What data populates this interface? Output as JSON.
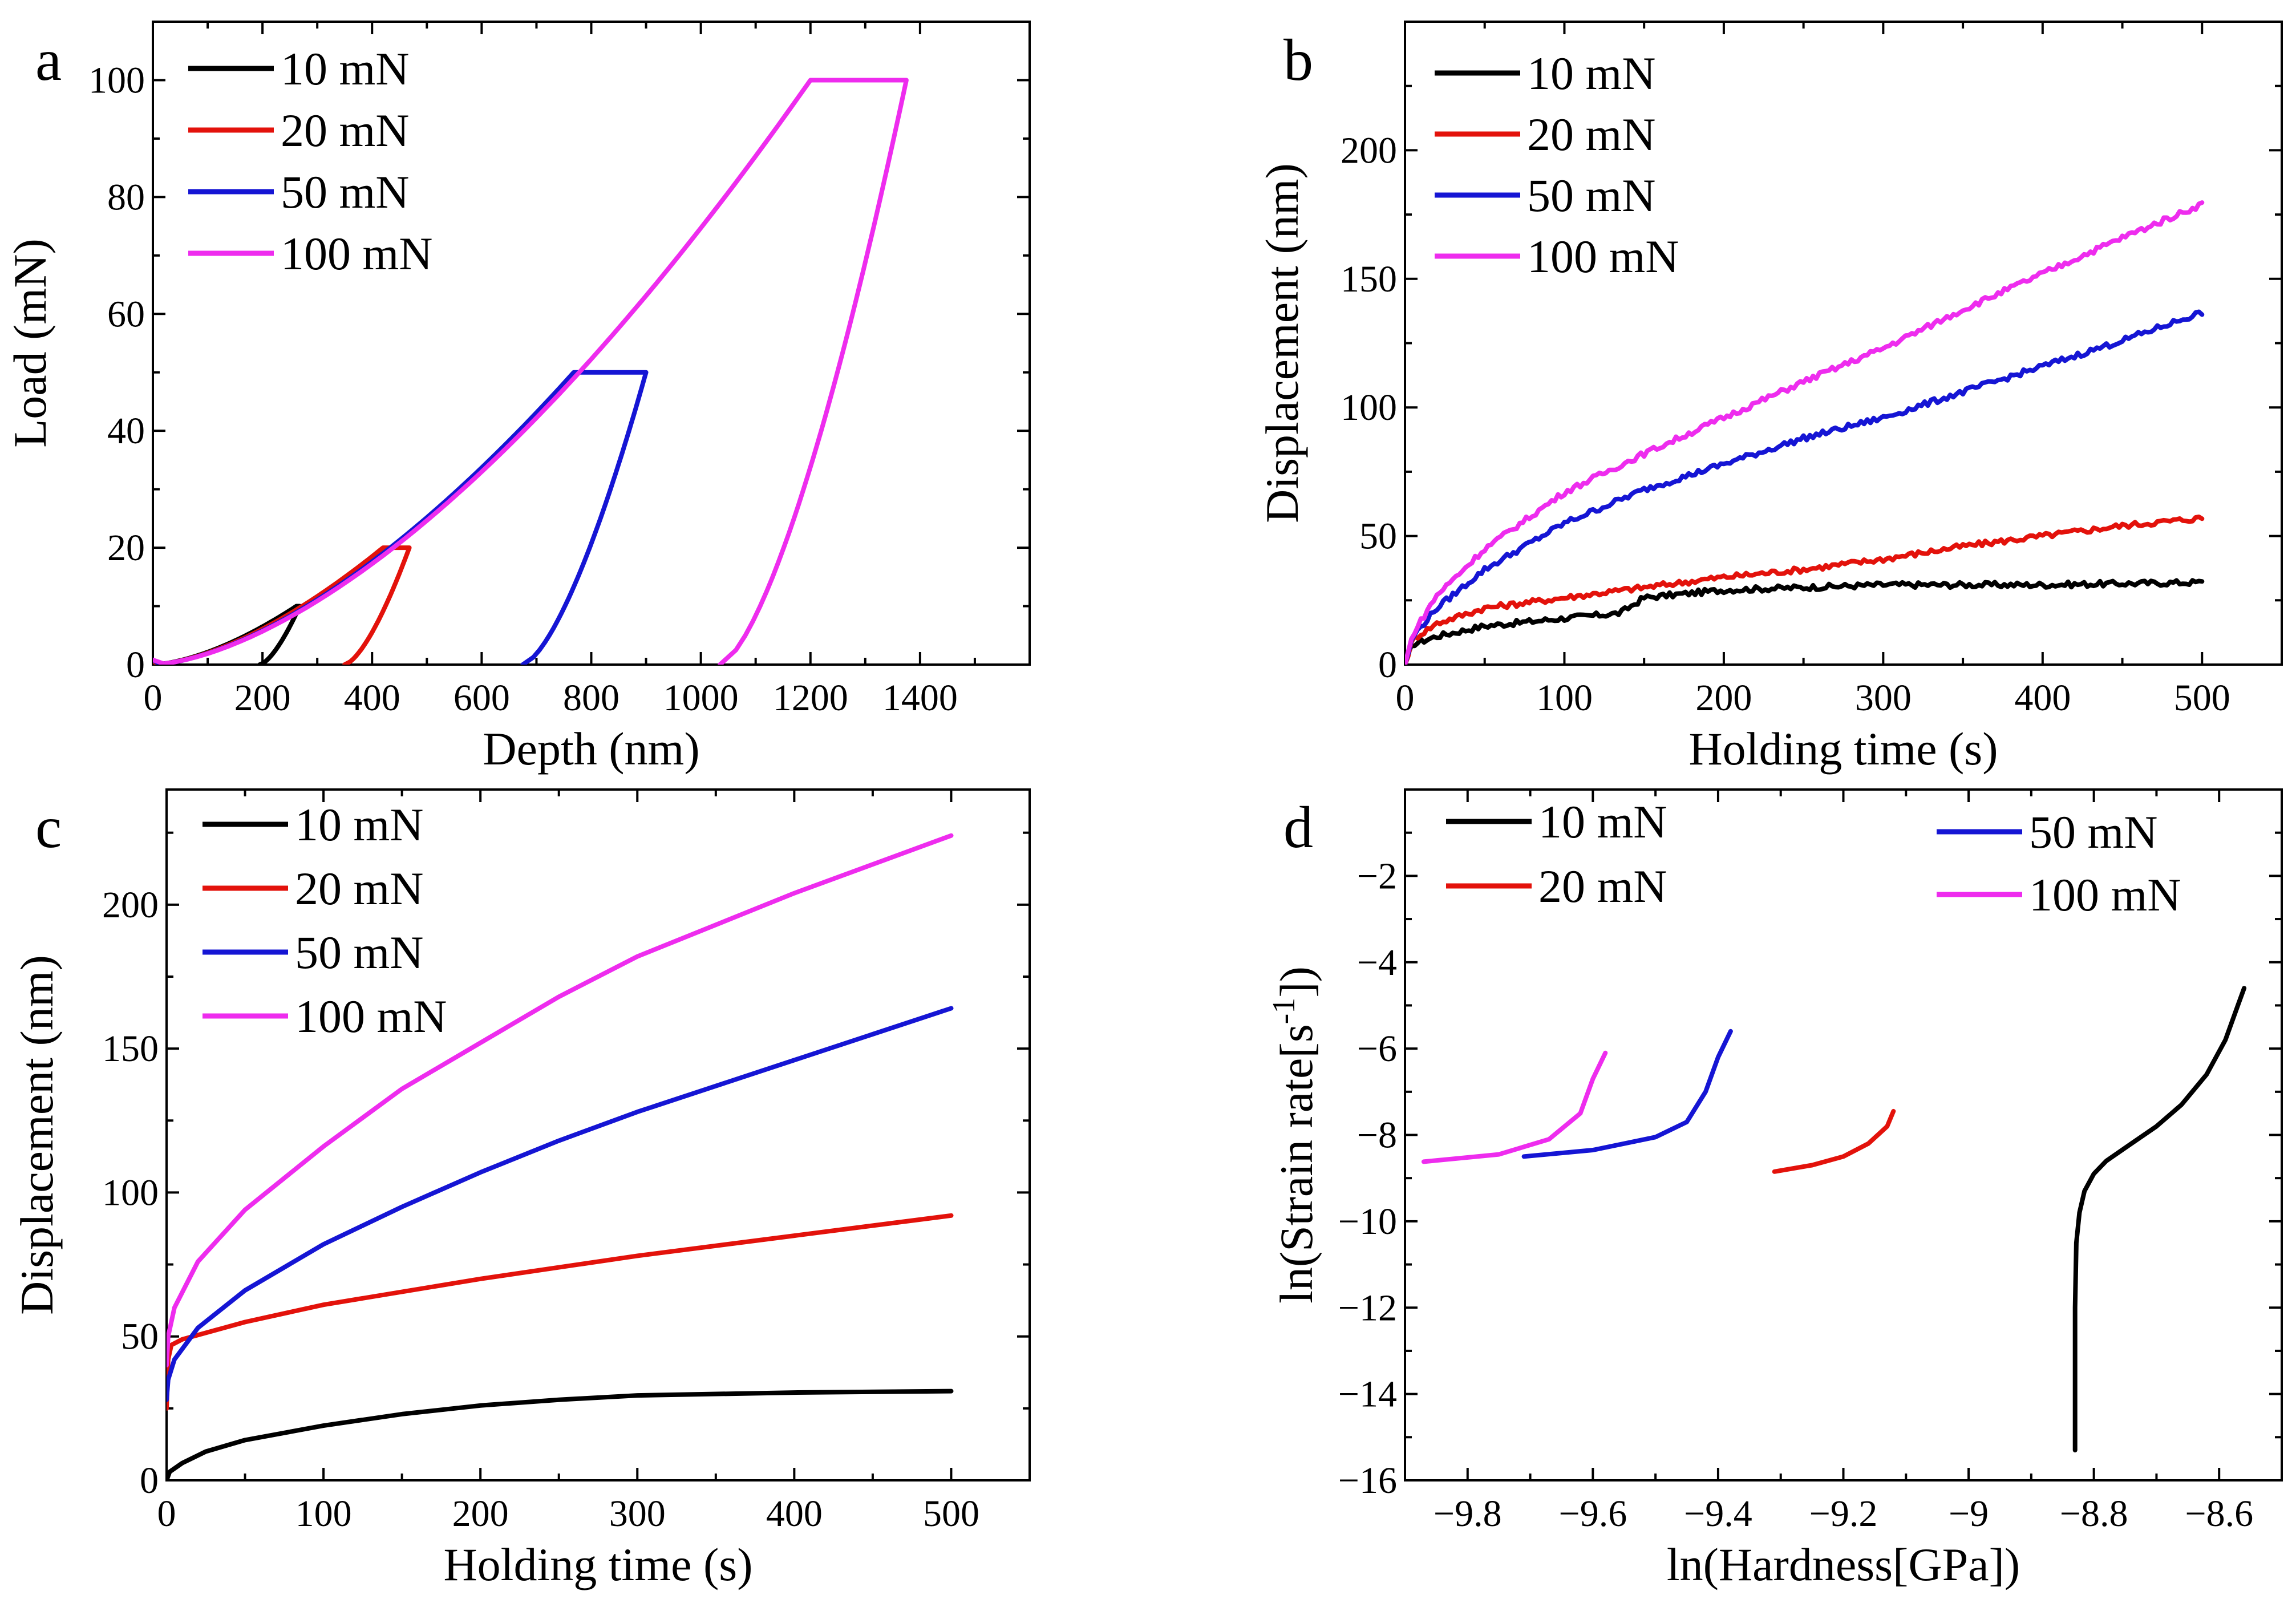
{
  "colors": {
    "black": "#000000",
    "red": "#e3120b",
    "blue": "#1515d4",
    "magenta": "#ee2cee"
  },
  "chart_data": [
    {
      "panel": "a",
      "type": "line",
      "xlabel": "Depth (nm)",
      "ylabel": "Load (mN)",
      "xlim": [
        0,
        1600
      ],
      "ylim": [
        0,
        110
      ],
      "xticks": [
        0,
        200,
        400,
        600,
        800,
        1000,
        1200,
        1400
      ],
      "yticks": [
        0,
        20,
        40,
        60,
        80,
        100
      ],
      "legend_position": "top-left",
      "series": [
        {
          "name": "10 mN",
          "color": "#000000",
          "loading": {
            "exponent": 1.6,
            "to": [
              262,
              10
            ]
          },
          "hold": [
            [
              262,
              10
            ],
            [
              268,
              10
            ]
          ],
          "unload": {
            "from": [
              268,
              10
            ],
            "to": [
              195,
              0
            ]
          }
        },
        {
          "name": "20 mN",
          "color": "#e3120b",
          "loading": {
            "exponent": 1.6,
            "to": [
              420,
              20
            ]
          },
          "hold": [
            [
              420,
              20
            ],
            [
              468,
              20
            ]
          ],
          "unload": {
            "from": [
              468,
              20
            ],
            "to": [
              350,
              0
            ]
          }
        },
        {
          "name": "50 mN",
          "color": "#1515d4",
          "loading": {
            "exponent": 1.6,
            "to": [
              768,
              50
            ]
          },
          "hold": [
            [
              768,
              50
            ],
            [
              900,
              50
            ]
          ],
          "unload": {
            "from": [
              900,
              50
            ],
            "to": [
              675,
              0
            ]
          }
        },
        {
          "name": "100 mN",
          "color": "#ee2cee",
          "loading": {
            "exponent": 1.6,
            "to": [
              1200,
              100
            ]
          },
          "hold": [
            [
              1200,
              100
            ],
            [
              1375,
              100
            ]
          ],
          "unload": {
            "from": [
              1375,
              100
            ],
            "to": [
              1035,
              0
            ]
          }
        }
      ]
    },
    {
      "panel": "b",
      "type": "line",
      "xlabel": "Holding time (s)",
      "ylabel": "Displacement (nm)",
      "xlim": [
        0,
        550
      ],
      "ylim": [
        0,
        250
      ],
      "xticks": [
        0,
        100,
        200,
        300,
        400,
        500
      ],
      "yticks": [
        0,
        50,
        100,
        150,
        200
      ],
      "legend_position": "top-left",
      "series": [
        {
          "name": "10 mN",
          "color": "#000000",
          "x": [
            0,
            5,
            20,
            50,
            100,
            135,
            150,
            200,
            250,
            300,
            400,
            500
          ],
          "y": [
            0,
            8,
            11,
            15,
            18,
            20,
            26,
            29,
            30,
            31,
            31,
            32
          ]
        },
        {
          "name": "20 mN",
          "color": "#e3120b",
          "x": [
            0,
            5,
            20,
            50,
            100,
            150,
            200,
            250,
            300,
            350,
            400,
            450,
            500
          ],
          "y": [
            0,
            10,
            16,
            22,
            26,
            30,
            34,
            37,
            41,
            46,
            50,
            54,
            57
          ]
        },
        {
          "name": "50 mN",
          "color": "#1515d4",
          "x": [
            0,
            5,
            20,
            50,
            100,
            150,
            200,
            250,
            300,
            350,
            400,
            450,
            500
          ],
          "y": [
            0,
            11,
            22,
            37,
            55,
            68,
            78,
            88,
            96,
            106,
            116,
            126,
            137
          ]
        },
        {
          "name": "100 mN",
          "color": "#ee2cee",
          "x": [
            0,
            5,
            20,
            50,
            100,
            150,
            200,
            250,
            300,
            350,
            400,
            450,
            500
          ],
          "y": [
            0,
            12,
            27,
            45,
            67,
            82,
            96,
            110,
            123,
            138,
            152,
            166,
            179
          ]
        }
      ]
    },
    {
      "panel": "c",
      "type": "line",
      "xlabel": "Holding time (s)",
      "ylabel": "Displacement (nm)",
      "xlim": [
        0,
        550
      ],
      "ylim": [
        0,
        240
      ],
      "xticks": [
        0,
        100,
        200,
        300,
        400,
        500
      ],
      "yticks": [
        0,
        50,
        100,
        150,
        200
      ],
      "legend_position": "top-left",
      "series": [
        {
          "name": "10 mN",
          "color": "#000000",
          "x": [
            0,
            2,
            10,
            25,
            50,
            100,
            150,
            200,
            250,
            300,
            400,
            500
          ],
          "y": [
            0,
            3,
            6,
            10,
            14,
            19,
            23,
            26,
            28,
            29.5,
            30.5,
            31
          ]
        },
        {
          "name": "20 mN",
          "color": "#e3120b",
          "x": [
            0,
            1,
            3,
            10,
            50,
            100,
            200,
            300,
            400,
            500
          ],
          "y": [
            25,
            42,
            47,
            49,
            55,
            61,
            70,
            78,
            85,
            92
          ]
        },
        {
          "name": "50 mN",
          "color": "#1515d4",
          "x": [
            0,
            1,
            5,
            20,
            50,
            100,
            150,
            200,
            250,
            300,
            400,
            500
          ],
          "y": [
            28,
            35,
            42,
            53,
            66,
            82,
            95,
            107,
            118,
            128,
            146,
            164
          ]
        },
        {
          "name": "100 mN",
          "color": "#ee2cee",
          "x": [
            0,
            1,
            5,
            20,
            50,
            100,
            150,
            200,
            250,
            300,
            400,
            500
          ],
          "y": [
            40,
            50,
            60,
            76,
            94,
            116,
            136,
            152,
            168,
            182,
            204,
            224
          ]
        }
      ]
    },
    {
      "panel": "d",
      "type": "line",
      "xlabel": "ln(Hardness[GPa])",
      "ylabel": "ln(Strain rate[s",
      "ylabel_sup": "-1",
      "ylabel_tail": "])",
      "xlim": [
        -9.9,
        -8.5
      ],
      "ylim": [
        -16,
        0
      ],
      "xticks": [
        -9.8,
        -9.6,
        -9.4,
        -9.2,
        -9.0,
        -8.8,
        -8.6
      ],
      "yticks": [
        -16,
        -14,
        -12,
        -10,
        -8,
        -6,
        -4,
        -2
      ],
      "legend_position": "top",
      "series": [
        {
          "name": "10 mN",
          "color": "#000000",
          "x": [
            -8.83,
            -8.83,
            -8.828,
            -8.823,
            -8.815,
            -8.8,
            -8.78,
            -8.74,
            -8.7,
            -8.66,
            -8.62,
            -8.59,
            -8.57,
            -8.56
          ],
          "y": [
            -15.3,
            -12.0,
            -10.5,
            -9.8,
            -9.3,
            -8.9,
            -8.6,
            -8.2,
            -7.8,
            -7.3,
            -6.6,
            -5.8,
            -5.0,
            -4.6
          ]
        },
        {
          "name": "20 mN",
          "color": "#e3120b",
          "x": [
            -9.31,
            -9.25,
            -9.2,
            -9.16,
            -9.13,
            -9.12
          ],
          "y": [
            -8.85,
            -8.7,
            -8.5,
            -8.2,
            -7.8,
            -7.45
          ]
        },
        {
          "name": "50 mN",
          "color": "#1515d4",
          "x": [
            -9.71,
            -9.6,
            -9.5,
            -9.45,
            -9.42,
            -9.4,
            -9.38
          ],
          "y": [
            -8.5,
            -8.35,
            -8.05,
            -7.7,
            -7.0,
            -6.2,
            -5.6
          ]
        },
        {
          "name": "100 mN",
          "color": "#ee2cee",
          "x": [
            -9.87,
            -9.75,
            -9.67,
            -9.62,
            -9.6,
            -9.58
          ],
          "y": [
            -8.62,
            -8.45,
            -8.1,
            -7.5,
            -6.7,
            -6.1
          ]
        }
      ]
    }
  ]
}
